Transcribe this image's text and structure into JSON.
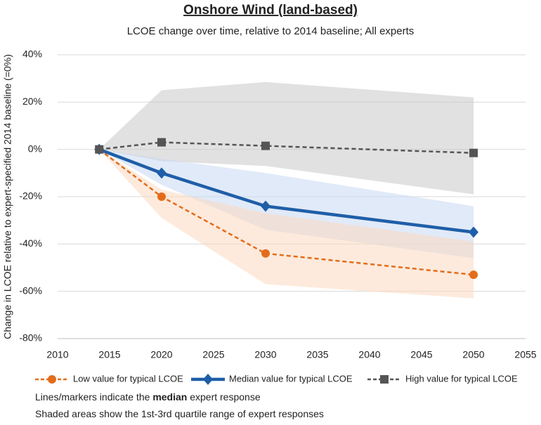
{
  "chart_data": {
    "type": "line",
    "title": "Onshore Wind (land-based)",
    "subtitle": "LCOE change over time, relative to 2014 baseline; All experts",
    "y_label": "Change in LCOE relative to expert-specified 2014 baseline (=0%)",
    "x": [
      2014,
      2020,
      2030,
      2050
    ],
    "series": [
      {
        "name": "Low value for typical LCOE",
        "color": "#e36c1b",
        "dash": true,
        "marker": "circle",
        "values": [
          0,
          -20,
          -44,
          -53
        ],
        "q1": [
          0,
          -29,
          -57,
          -63
        ],
        "q3": [
          0,
          -17,
          -27,
          -39
        ]
      },
      {
        "name": "Median value for typical LCOE",
        "color": "#1f5ea8",
        "dash": false,
        "marker": "diamond",
        "values": [
          0,
          -10,
          -24,
          -35
        ],
        "q1": [
          0,
          -15,
          -34,
          -46
        ],
        "q3": [
          0,
          -4,
          -10,
          -24
        ]
      },
      {
        "name": "High value for typical LCOE",
        "color": "#555555",
        "dash": true,
        "marker": "square",
        "values": [
          0,
          3,
          1.5,
          -1.5
        ],
        "q1": [
          0,
          -5,
          -7,
          -19
        ],
        "q3": [
          0,
          25,
          28.5,
          22
        ]
      }
    ],
    "band_colors": [
      "#fbd9c0",
      "#c9d9f2",
      "#c8c8c8"
    ],
    "xlim": [
      2010,
      2055
    ],
    "xticks": [
      2010,
      2015,
      2020,
      2025,
      2030,
      2035,
      2040,
      2045,
      2050,
      2055
    ],
    "ylim": [
      -80,
      40
    ],
    "yticks": [
      {
        "value": -80,
        "label": "-80%"
      },
      {
        "value": -60,
        "label": "-60%"
      },
      {
        "value": -40,
        "label": "-40%"
      },
      {
        "value": -20,
        "label": "-20%"
      },
      {
        "value": 0,
        "label": "0%"
      },
      {
        "value": 20,
        "label": "20%"
      },
      {
        "value": 40,
        "label": "40%"
      }
    ],
    "grid": true,
    "notes": [
      [
        "Lines/markers indicate the ",
        "median",
        " expert response"
      ],
      [
        "Shaded areas show the 1st-3rd quartile range of expert responses"
      ]
    ]
  }
}
